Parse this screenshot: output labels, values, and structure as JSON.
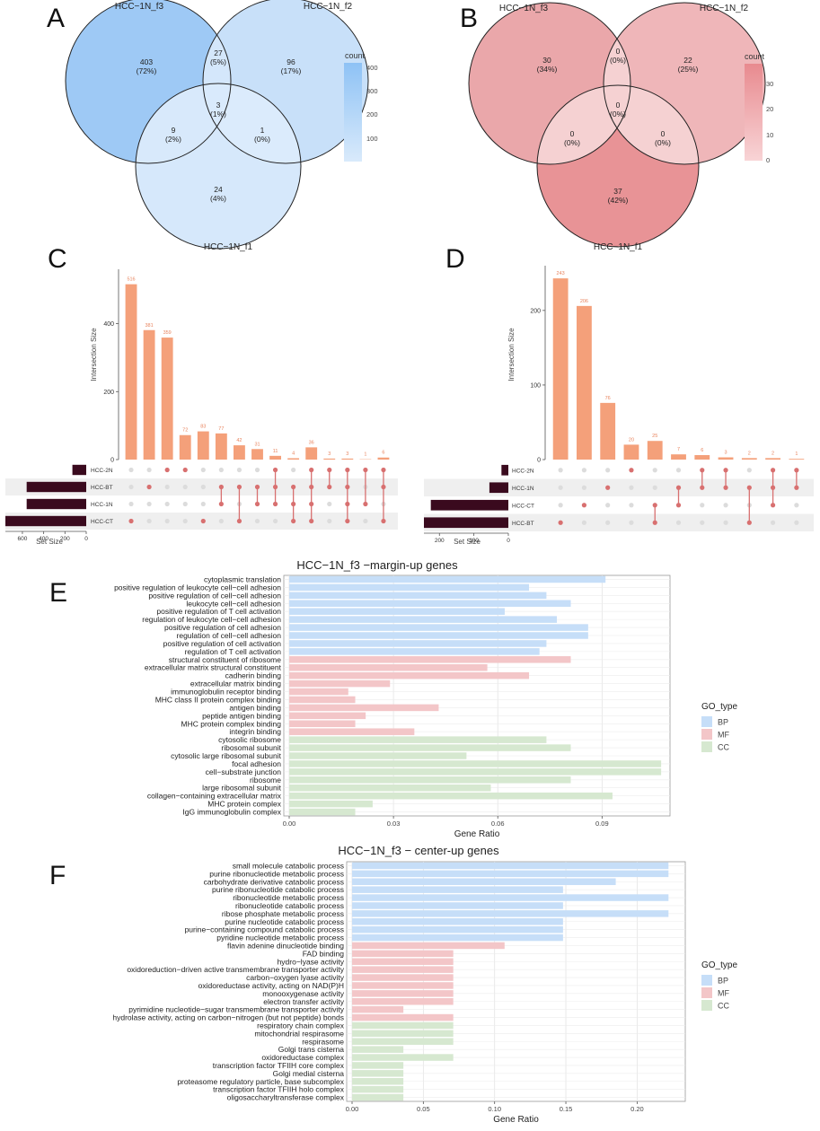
{
  "panels": {
    "A": {
      "letter": "A",
      "set_labels": [
        "HCC−1N_f3",
        "HCC−1N_f2",
        "HCC−1N_f1"
      ],
      "regions": [
        {
          "name": "f3_only",
          "count": "403",
          "pct": "(72%)",
          "color": "#9ec9f5"
        },
        {
          "name": "f2_only",
          "count": "96",
          "pct": "(17%)",
          "color": "#c8e0f9"
        },
        {
          "name": "f1_only",
          "count": "24",
          "pct": "(4%)",
          "color": "#d6e8fb"
        },
        {
          "name": "f3_f2",
          "count": "27",
          "pct": "(5%)",
          "color": "#d4e7fb"
        },
        {
          "name": "f3_f1",
          "count": "9",
          "pct": "(2%)",
          "color": "#d8e9fb"
        },
        {
          "name": "f2_f1",
          "count": "1",
          "pct": "(0%)",
          "color": "#dbebfc"
        },
        {
          "name": "all",
          "count": "3",
          "pct": "(1%)",
          "color": "#d9eafc"
        }
      ],
      "legend_title": "count",
      "legend_ticks": [
        "400",
        "300",
        "200",
        "100"
      ],
      "legend_colors": [
        "#8ec2f5",
        "#d9eafb"
      ]
    },
    "B": {
      "letter": "B",
      "set_labels": [
        "HCC−1N_f3",
        "HCC−1N_f2",
        "HCC−1N_f1"
      ],
      "regions": [
        {
          "name": "f3_only",
          "count": "30",
          "pct": "(34%)",
          "color": "#eaa7aa"
        },
        {
          "name": "f2_only",
          "count": "22",
          "pct": "(25%)",
          "color": "#efb6b9"
        },
        {
          "name": "f1_only",
          "count": "37",
          "pct": "(42%)",
          "color": "#e89396"
        },
        {
          "name": "f3_f2",
          "count": "0",
          "pct": "(0%)",
          "color": "#f5d1d2"
        },
        {
          "name": "f3_f1",
          "count": "0",
          "pct": "(0%)",
          "color": "#f5d1d2"
        },
        {
          "name": "f2_f1",
          "count": "0",
          "pct": "(0%)",
          "color": "#f5d1d2"
        },
        {
          "name": "all",
          "count": "0",
          "pct": "(0%)",
          "color": "#f5d1d2"
        }
      ],
      "legend_title": "count",
      "legend_ticks": [
        "30",
        "20",
        "10",
        "0"
      ],
      "legend_colors": [
        "#e88a8f",
        "#f8d4d6"
      ]
    },
    "C": {
      "letter": "C",
      "ylabel": "Intersection Size",
      "set_size_label": "Set Size",
      "chart_data": {
        "type": "bar",
        "title": "",
        "ylabel": "Intersection Size",
        "ylim": [
          0,
          560
        ],
        "yticks": [
          0,
          200,
          400
        ],
        "values": [
          516,
          381,
          359,
          72,
          83,
          77,
          42,
          31,
          11,
          4,
          36,
          3,
          3,
          1,
          6
        ],
        "value_labels": [
          "516",
          "381",
          "359",
          "72",
          "83",
          "77",
          "42",
          "31",
          "11",
          "4",
          "36",
          "3",
          "3",
          "1",
          "6"
        ],
        "sets": [
          "HCC-2N",
          "HCC-BT",
          "HCC-1N",
          "HCC-CT"
        ],
        "set_sizes": [
          130,
          560,
          560,
          760
        ],
        "set_size_ticks": [
          600,
          400,
          200,
          0
        ],
        "set_size_max": 760,
        "membership": [
          [
            3
          ],
          [
            1
          ],
          [
            0
          ],
          [
            0
          ],
          [
            3
          ],
          [
            1,
            2
          ],
          [
            3,
            1
          ],
          [
            2,
            1
          ],
          [
            0,
            1,
            2
          ],
          [
            3,
            2,
            1
          ],
          [
            0,
            1,
            2,
            3
          ],
          [
            1,
            0
          ],
          [
            3,
            2,
            1,
            0
          ],
          [
            2,
            0
          ],
          [
            3,
            1,
            0
          ]
        ]
      }
    },
    "D": {
      "letter": "D",
      "ylabel": "Intersection Size",
      "set_size_label": "Set Size",
      "chart_data": {
        "type": "bar",
        "title": "",
        "ylabel": "Intersection Size",
        "ylim": [
          0,
          260
        ],
        "yticks": [
          0,
          100,
          200
        ],
        "values": [
          243,
          206,
          76,
          20,
          25,
          7,
          6,
          3,
          2,
          2,
          1
        ],
        "value_labels": [
          "243",
          "206",
          "76",
          "20",
          "25",
          "7",
          "6",
          "3",
          "2",
          "2",
          "1"
        ],
        "sets": [
          "HCC-2N",
          "HCC-1N",
          "HCC-CT",
          "HCC-BT"
        ],
        "set_sizes": [
          20,
          55,
          225,
          245
        ],
        "set_size_ticks": [
          200,
          100,
          0
        ],
        "set_size_max": 245,
        "membership": [
          [
            3
          ],
          [
            2
          ],
          [
            1
          ],
          [
            0
          ],
          [
            2,
            3
          ],
          [
            1,
            2
          ],
          [
            0,
            1
          ],
          [
            0,
            1
          ],
          [
            1,
            3
          ],
          [
            0,
            1,
            2
          ],
          [
            0,
            1
          ]
        ]
      }
    },
    "E": {
      "letter": "E",
      "chart_data": {
        "type": "bar",
        "orientation": "horizontal",
        "title": "HCC−1N_f3 −margin-up genes",
        "xlabel": "Gene Ratio",
        "xlim": [
          0,
          0.108
        ],
        "xticks": [
          "0.00",
          "0.03",
          "0.06",
          "0.09"
        ],
        "xtick_values": [
          0,
          0.03,
          0.06,
          0.09
        ],
        "legend_title": "GO_type",
        "legend": [
          {
            "name": "BP",
            "color": "#c6def8"
          },
          {
            "name": "MF",
            "color": "#f3c6c8"
          },
          {
            "name": "CC",
            "color": "#d6e8d0"
          }
        ],
        "categories": [
          "cytoplasmic translation",
          "positive regulation of leukocyte cell−cell adhesion",
          "positive regulation of cell−cell adhesion",
          "leukocyte cell−cell adhesion",
          "positive regulation of T cell activation",
          "regulation of leukocyte cell−cell adhesion",
          "positive regulation of cell adhesion",
          "regulation of cell−cell adhesion",
          "positive regulation of cell activation",
          "regulation of T cell activation",
          "structural constituent of ribosome",
          "extracellular matrix structural constituent",
          "cadherin binding",
          "extracellular matrix binding",
          "immunoglobulin receptor binding",
          "MHC class II protein complex binding",
          "antigen binding",
          "peptide antigen binding",
          "MHC protein complex binding",
          "integrin binding",
          "cytosolic ribosome",
          "ribosomal subunit",
          "cytosolic large ribosomal subunit",
          "focal adhesion",
          "cell−substrate junction",
          "ribosome",
          "large ribosomal subunit",
          "collagen−containing extracellular matrix",
          "MHC protein complex",
          "IgG immunoglobulin complex"
        ],
        "values": [
          0.091,
          0.069,
          0.074,
          0.081,
          0.062,
          0.077,
          0.086,
          0.086,
          0.074,
          0.072,
          0.081,
          0.057,
          0.069,
          0.029,
          0.017,
          0.019,
          0.043,
          0.022,
          0.019,
          0.036,
          0.074,
          0.081,
          0.051,
          0.107,
          0.107,
          0.081,
          0.058,
          0.093,
          0.024,
          0.019
        ],
        "types": [
          "BP",
          "BP",
          "BP",
          "BP",
          "BP",
          "BP",
          "BP",
          "BP",
          "BP",
          "BP",
          "MF",
          "MF",
          "MF",
          "MF",
          "MF",
          "MF",
          "MF",
          "MF",
          "MF",
          "MF",
          "CC",
          "CC",
          "CC",
          "CC",
          "CC",
          "CC",
          "CC",
          "CC",
          "CC",
          "CC"
        ]
      }
    },
    "F": {
      "letter": "F",
      "chart_data": {
        "type": "bar",
        "orientation": "horizontal",
        "title": "HCC−1N_f3 − center-up genes",
        "xlabel": "Gene Ratio",
        "xlim": [
          0,
          0.23
        ],
        "xticks": [
          "0.00",
          "0.05",
          "0.10",
          "0.15",
          "0.20"
        ],
        "xtick_values": [
          0,
          0.05,
          0.1,
          0.15,
          0.2
        ],
        "legend_title": "GO_type",
        "legend": [
          {
            "name": "BP",
            "color": "#c6def8"
          },
          {
            "name": "MF",
            "color": "#f3c6c8"
          },
          {
            "name": "CC",
            "color": "#d6e8d0"
          }
        ],
        "categories": [
          "small molecule catabolic process",
          "purine ribonucleotide metabolic process",
          "carbohydrate derivative catabolic process",
          "purine ribonucleotide catabolic process",
          "ribonucleotide metabolic process",
          "ribonucleotide catabolic process",
          "ribose phosphate metabolic process",
          "purine nucleotide catabolic process",
          "purine−containing compound catabolic process",
          "pyridine nucleotide metabolic process",
          "flavin adenine dinucleotide binding",
          "FAD binding",
          "hydro−lyase activity",
          "oxidoreduction−driven active transmembrane transporter activity",
          "carbon−oxygen lyase activity",
          "oxidoreductase activity, acting on NAD(P)H",
          "monooxygenase activity",
          "electron transfer activity",
          "pyrimidine nucleotide−sugar transmembrane transporter activity",
          "hydrolase activity, acting on carbon−nitrogen (but not peptide) bonds",
          "respiratory chain complex",
          "mitochondrial respirasome",
          "respirasome",
          "Golgi trans cisterna",
          "oxidoreductase complex",
          "transcription factor TFIIH core complex",
          "Golgi medial cisterna",
          "proteasome regulatory particle, base subcomplex",
          "transcription factor TFIIH holo complex",
          "oligosaccharyltransferase complex"
        ],
        "values": [
          0.222,
          0.222,
          0.185,
          0.148,
          0.222,
          0.148,
          0.222,
          0.148,
          0.148,
          0.148,
          0.107,
          0.071,
          0.071,
          0.071,
          0.071,
          0.071,
          0.071,
          0.071,
          0.036,
          0.071,
          0.071,
          0.071,
          0.071,
          0.036,
          0.071,
          0.036,
          0.036,
          0.036,
          0.036,
          0.036
        ],
        "types": [
          "BP",
          "BP",
          "BP",
          "BP",
          "BP",
          "BP",
          "BP",
          "BP",
          "BP",
          "BP",
          "MF",
          "MF",
          "MF",
          "MF",
          "MF",
          "MF",
          "MF",
          "MF",
          "MF",
          "MF",
          "CC",
          "CC",
          "CC",
          "CC",
          "CC",
          "CC",
          "CC",
          "CC",
          "CC",
          "CC"
        ]
      }
    }
  }
}
